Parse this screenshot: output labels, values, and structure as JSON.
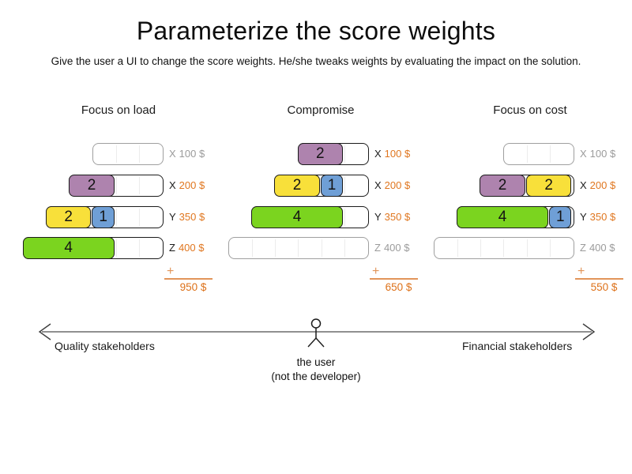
{
  "title": "Parameterize the score weights",
  "subtitle": "Give the user a UI to change the score weights. He/she tweaks weights by evaluating the impact on the solution.",
  "colors": {
    "purple": "#ae83ae",
    "yellow": "#f8e03a",
    "blue": "#6f9fd6",
    "green": "#7bd41f",
    "orange_text": "#dd7119",
    "orange_line": "#e2955a",
    "gray_label": "#9b9b9b",
    "block_border": "#1b1b1b",
    "inactive_border": "#9f9f9f",
    "arrow": "#555555"
  },
  "panels": [
    {
      "name": "Focus on load",
      "total": "950 $",
      "plus_sign": "+",
      "rows": [
        {
          "label": "X",
          "cost": "100 $",
          "capacity": 3,
          "active": false,
          "blocks": []
        },
        {
          "label": "X",
          "cost": "200 $",
          "capacity": 4,
          "active": true,
          "blocks": [
            {
              "value": "2",
              "size": 2,
              "color": "purple"
            }
          ]
        },
        {
          "label": "Y",
          "cost": "350 $",
          "capacity": 5,
          "active": true,
          "blocks": [
            {
              "value": "2",
              "size": 2,
              "color": "yellow"
            },
            {
              "value": "1",
              "size": 1,
              "color": "blue"
            }
          ]
        },
        {
          "label": "Z",
          "cost": "400 $",
          "capacity": 6,
          "active": true,
          "blocks": [
            {
              "value": "4",
              "size": 4,
              "color": "green"
            }
          ]
        }
      ]
    },
    {
      "name": "Compromise",
      "total": "650 $",
      "plus_sign": "+",
      "rows": [
        {
          "label": "X",
          "cost": "100 $",
          "capacity": 3,
          "active": true,
          "blocks": [
            {
              "value": "2",
              "size": 2,
              "color": "purple"
            }
          ]
        },
        {
          "label": "X",
          "cost": "200 $",
          "capacity": 4,
          "active": true,
          "blocks": [
            {
              "value": "2",
              "size": 2,
              "color": "yellow"
            },
            {
              "value": "1",
              "size": 1,
              "color": "blue"
            }
          ]
        },
        {
          "label": "Y",
          "cost": "350 $",
          "capacity": 5,
          "active": true,
          "blocks": [
            {
              "value": "4",
              "size": 4,
              "color": "green"
            }
          ]
        },
        {
          "label": "Z",
          "cost": "400 $",
          "capacity": 6,
          "active": false,
          "blocks": []
        }
      ]
    },
    {
      "name": "Focus on cost",
      "total": "550 $",
      "plus_sign": "+",
      "rows": [
        {
          "label": "X",
          "cost": "100 $",
          "capacity": 3,
          "active": false,
          "blocks": []
        },
        {
          "label": "X",
          "cost": "200 $",
          "capacity": 4,
          "active": true,
          "blocks": [
            {
              "value": "2",
              "size": 2,
              "color": "purple"
            },
            {
              "value": "2",
              "size": 2,
              "color": "yellow"
            }
          ]
        },
        {
          "label": "Y",
          "cost": "350 $",
          "capacity": 5,
          "active": true,
          "blocks": [
            {
              "value": "4",
              "size": 4,
              "color": "green"
            },
            {
              "value": "1",
              "size": 1,
              "color": "blue"
            }
          ]
        },
        {
          "label": "Z",
          "cost": "400 $",
          "capacity": 6,
          "active": false,
          "blocks": []
        }
      ]
    }
  ],
  "footer": {
    "left_label": "Quality stakeholders",
    "right_label": "Financial stakeholders",
    "figure_caption_line1": "the user",
    "figure_caption_line2": "(not the developer)"
  }
}
